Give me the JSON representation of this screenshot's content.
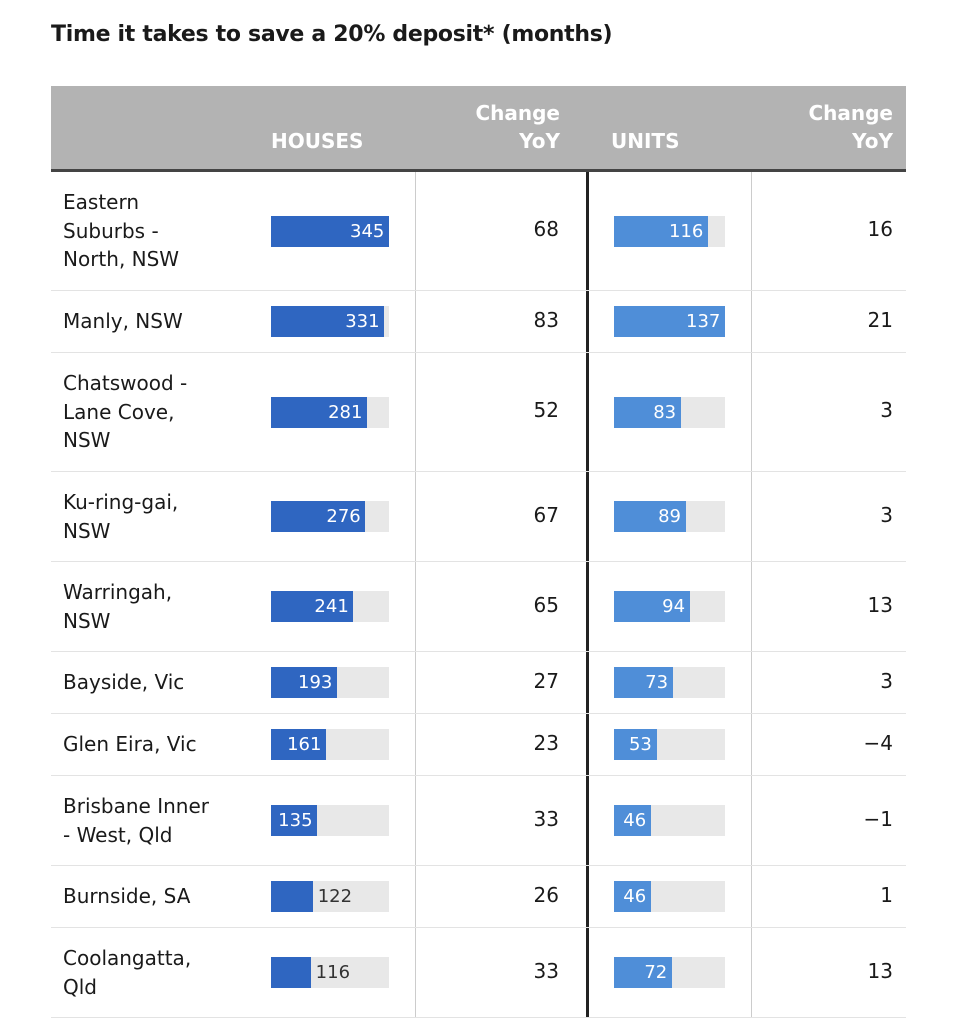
{
  "title": "Time it takes to save a 20% deposit* (months)",
  "header": {
    "houses": "HOUSES",
    "change_yoy_houses": [
      "Change",
      "YoY"
    ],
    "units": "UNITS",
    "change_yoy_units": [
      "Change",
      "YoY"
    ]
  },
  "colors": {
    "houses_bar": "#2f66c1",
    "units_bar": "#4f8ed8",
    "track": "#e8e8e8",
    "header_bg": "#b3b3b3"
  },
  "chart_data": {
    "type": "table",
    "columns": [
      "",
      "HOUSES",
      "Change YoY",
      "UNITS",
      "Change YoY"
    ],
    "houses_max": 345,
    "units_max": 137,
    "rows": [
      {
        "region": [
          "Eastern",
          "Suburbs -",
          "North, NSW"
        ],
        "houses": 345,
        "houses_change": "68",
        "units": 116,
        "units_change": "16"
      },
      {
        "region": [
          "Manly, NSW"
        ],
        "houses": 331,
        "houses_change": "83",
        "units": 137,
        "units_change": "21"
      },
      {
        "region": [
          "Chatswood -",
          "Lane Cove,",
          "NSW"
        ],
        "houses": 281,
        "houses_change": "52",
        "units": 83,
        "units_change": "3"
      },
      {
        "region": [
          "Ku-ring-gai,",
          "NSW"
        ],
        "houses": 276,
        "houses_change": "67",
        "units": 89,
        "units_change": "3"
      },
      {
        "region": [
          "Warringah,",
          "NSW"
        ],
        "houses": 241,
        "houses_change": "65",
        "units": 94,
        "units_change": "13"
      },
      {
        "region": [
          "Bayside, Vic"
        ],
        "houses": 193,
        "houses_change": "27",
        "units": 73,
        "units_change": "3"
      },
      {
        "region": [
          "Glen Eira, Vic"
        ],
        "houses": 161,
        "houses_change": "23",
        "units": 53,
        "units_change": "−4"
      },
      {
        "region": [
          "Brisbane Inner",
          "- West, Qld"
        ],
        "houses": 135,
        "houses_change": "33",
        "units": 46,
        "units_change": "−1"
      },
      {
        "region": [
          "Burnside, SA"
        ],
        "houses": 122,
        "houses_change": "26",
        "units": 46,
        "units_change": "1"
      },
      {
        "region": [
          "Coolangatta,",
          "Qld"
        ],
        "houses": 116,
        "houses_change": "33",
        "units": 72,
        "units_change": "13"
      }
    ]
  }
}
